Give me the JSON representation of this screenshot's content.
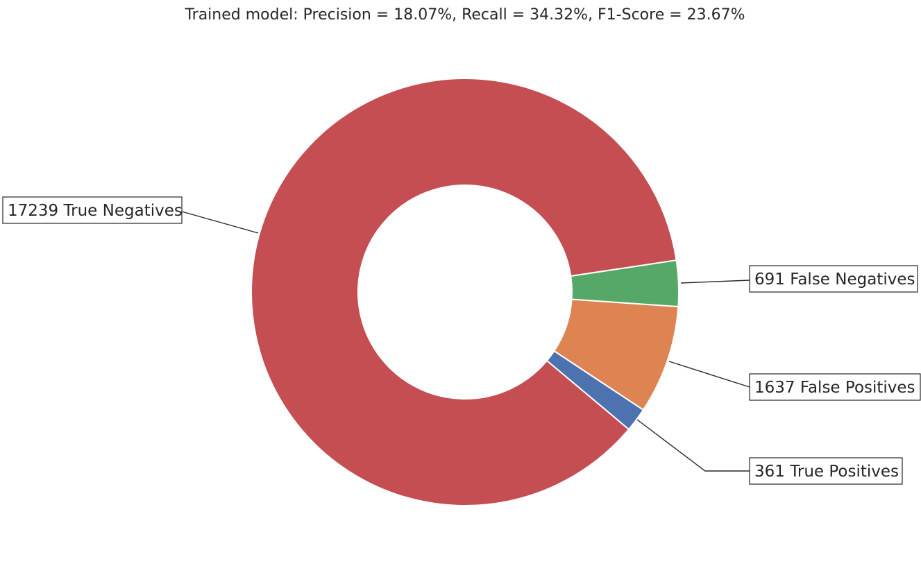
{
  "chart_data": {
    "type": "pie",
    "variant": "donut",
    "title": "Trained model: Precision = 18.07%, Recall = 34.32%, F1-Score = 23.67%",
    "slices": [
      {
        "key": "tp",
        "value": 361,
        "label": "361 True Positives",
        "color": "#4c72b0"
      },
      {
        "key": "fp",
        "value": 1637,
        "label": "1637 False Positives",
        "color": "#dd8452"
      },
      {
        "key": "fn",
        "value": 691,
        "label": "691 False Negatives",
        "color": "#55a868"
      },
      {
        "key": "tn",
        "value": 17239,
        "label": "17239 True Negatives",
        "color": "#c44e52"
      }
    ],
    "legend": false,
    "grid": false
  }
}
